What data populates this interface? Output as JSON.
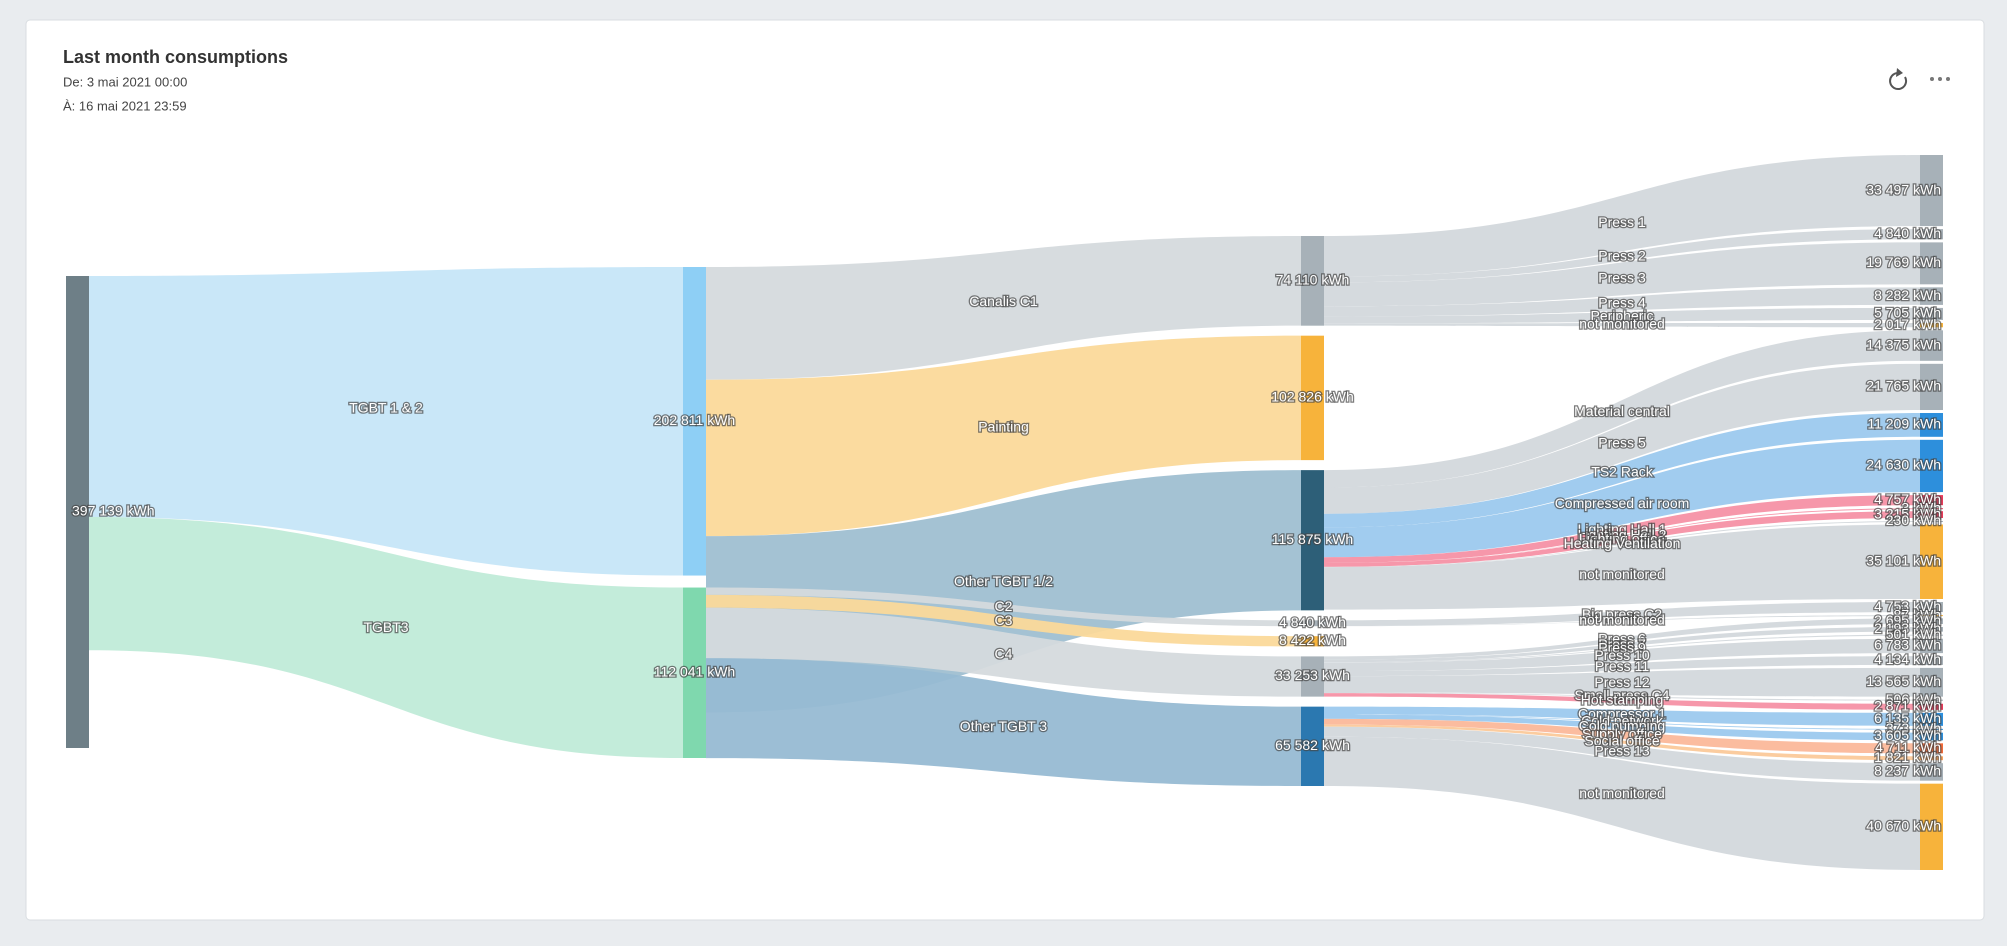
{
  "header": {
    "title": "Last month consumptions",
    "from": "De: 3 mai 2021 00:00",
    "to": "À: 16 mai 2021 23:59"
  },
  "chart_data": {
    "type": "sankey",
    "nodes": [
      {
        "value": 397139,
        "value_label": "397 139 kWh",
        "color": "#6e7f87"
      },
      {
        "value": 202811,
        "value_label": "202 811 kWh",
        "color": "#8ecff5"
      },
      {
        "value": 112041,
        "value_label": "112 041 kWh",
        "color": "#7fd8ae"
      },
      {
        "value": 74110,
        "value_label": "74 110 kWh",
        "color": "#a7b1b8"
      },
      {
        "value": 102826,
        "value_label": "102 826 kWh",
        "color": "#f7b33b"
      },
      {
        "value": 115875,
        "value_label": "115 875 kWh",
        "color": "#2d5f78"
      },
      {
        "value": 4840,
        "value_label": "4 840 kWh",
        "color": "#a7b1b8"
      },
      {
        "value": 8422,
        "value_label": "8 422 kWh",
        "color": "#f7b33b"
      },
      {
        "value": 33253,
        "value_label": "33 253 kWh",
        "color": "#a7b1b8"
      },
      {
        "value": 65582,
        "value_label": "65 582 kWh",
        "color": "#2b78b0"
      },
      {
        "value": 33497,
        "value_label": "33 497 kWh",
        "color": "#a7b1b8"
      },
      {
        "value": 4840,
        "value_label": "4 840 kWh",
        "color": "#a7b1b8"
      },
      {
        "value": 19769,
        "value_label": "19 769 kWh",
        "color": "#a7b1b8"
      },
      {
        "value": 8282,
        "value_label": "8 282 kWh",
        "color": "#a7b1b8"
      },
      {
        "value": 5705,
        "value_label": "5 705 kWh",
        "color": "#a7b1b8"
      },
      {
        "value": 2017,
        "value_label": "2 017 kWh",
        "color": "#f7b33b"
      },
      {
        "value": 14375,
        "value_label": "14 375 kWh",
        "color": "#a7b1b8"
      },
      {
        "value": 21765,
        "value_label": "21 765 kWh",
        "color": "#a7b1b8"
      },
      {
        "value": 11209,
        "value_label": "11 209 kWh",
        "color": "#2d8fdc"
      },
      {
        "value": 24630,
        "value_label": "24 630 kWh",
        "color": "#2d8fdc"
      },
      {
        "value": 4757,
        "value_label": "4 757 kWh",
        "color": "#e83b5a"
      },
      {
        "value": 3,
        "value_label": "3 kWh",
        "color": "#e83b5a"
      },
      {
        "value": 3215,
        "value_label": "3 215 kWh",
        "color": "#e83b5a"
      },
      {
        "value": 230,
        "value_label": "230 kWh",
        "color": "#a7b1b8"
      },
      {
        "value": 35101,
        "value_label": "35 101 kWh",
        "color": "#f7b33b"
      },
      {
        "value": 4753,
        "value_label": "4 753 kWh",
        "color": "#a7b1b8"
      },
      {
        "value": 87,
        "value_label": "87 kWh",
        "color": "#f7b33b"
      },
      {
        "value": 2695,
        "value_label": "2 695 kWh",
        "color": "#a7b1b8"
      },
      {
        "value": 2193,
        "value_label": "2 193 kWh",
        "color": "#a7b1b8"
      },
      {
        "value": 501,
        "value_label": "501 kWh",
        "color": "#a7b1b8"
      },
      {
        "value": 6783,
        "value_label": "6 783 kWh",
        "color": "#a7b1b8"
      },
      {
        "value": 4134,
        "value_label": "4 134 kWh",
        "color": "#a7b1b8"
      },
      {
        "value": 13565,
        "value_label": "13 565 kWh",
        "color": "#a7b1b8"
      },
      {
        "value": 506,
        "value_label": "506 kWh",
        "color": "#a7b1b8"
      },
      {
        "value": 2871,
        "value_label": "2 871 kWh",
        "color": "#e83b5a"
      },
      {
        "value": 6135,
        "value_label": "6 135 kWh",
        "color": "#2d8fdc"
      },
      {
        "value": 373,
        "value_label": "373 kWh",
        "color": "#2d8fdc"
      },
      {
        "value": 3605,
        "value_label": "3 605 kWh",
        "color": "#2d8fdc"
      },
      {
        "value": 4711,
        "value_label": "4 711 kWh",
        "color": "#f26b3a"
      },
      {
        "value": 1821,
        "value_label": "1 821 kWh",
        "color": "#f7a15a"
      },
      {
        "value": 8237,
        "value_label": "8 237 kWh",
        "color": "#a7b1b8"
      },
      {
        "value": 40670,
        "value_label": "40 670 kWh",
        "color": "#f7b33b"
      }
    ],
    "links": [
      {
        "source": 0,
        "target": 1,
        "name": "TGBT 1 & 2",
        "color": "#c6e6f8"
      },
      {
        "source": 0,
        "target": 2,
        "name": "TGBT3",
        "color": "#c0ebd8"
      },
      {
        "source": 1,
        "target": 3,
        "name": "Canalis C1",
        "color": "#d5dadd"
      },
      {
        "source": 1,
        "target": 4,
        "name": "Painting",
        "color": "#fbd99a"
      },
      {
        "source": 1,
        "target": 5,
        "name": "Other TGBT 1/2",
        "color": "#9fbfd1"
      },
      {
        "source": 2,
        "target": 6,
        "name": "C2",
        "color": "#d5dadd"
      },
      {
        "source": 2,
        "target": 7,
        "name": "C3",
        "color": "#fbd99a"
      },
      {
        "source": 2,
        "target": 8,
        "name": "C4",
        "color": "#d5dadd"
      },
      {
        "source": 2,
        "target": 9,
        "name": "Other TGBT 3",
        "color": "#97bbd3"
      },
      {
        "source": 3,
        "target": 10,
        "name": "Press 1",
        "color": "#d3d8dc"
      },
      {
        "source": 3,
        "target": 11,
        "name": "Press 2",
        "color": "#d3d8dc"
      },
      {
        "source": 3,
        "target": 12,
        "name": "Press 3",
        "color": "#d3d8dc"
      },
      {
        "source": 3,
        "target": 13,
        "name": "Press 4",
        "color": "#d3d8dc"
      },
      {
        "source": 3,
        "target": 14,
        "name": "Peripheric",
        "color": "#d3d8dc"
      },
      {
        "source": 3,
        "target": 15,
        "name": "not monitored",
        "color": "#d3d8dc"
      },
      {
        "source": 5,
        "target": 16,
        "name": "Material central",
        "color": "#d3d8dc"
      },
      {
        "source": 5,
        "target": 17,
        "name": "Press 5",
        "color": "#d3d8dc"
      },
      {
        "source": 5,
        "target": 18,
        "name": "TS2 Rack",
        "color": "#9cc9ee"
      },
      {
        "source": 5,
        "target": 19,
        "name": "Compressed air room",
        "color": "#9cc9ee"
      },
      {
        "source": 5,
        "target": 20,
        "name": "Lighting Hall 1",
        "color": "#f591a5"
      },
      {
        "source": 5,
        "target": 21,
        "name": "Lighting Hall 2",
        "color": "#f591a5"
      },
      {
        "source": 5,
        "target": 22,
        "name": "Lighting office",
        "color": "#f591a5"
      },
      {
        "source": 5,
        "target": 23,
        "name": "Heating Ventilation",
        "color": "#d3d8dc"
      },
      {
        "source": 5,
        "target": 24,
        "name": "not monitored",
        "color": "#d3d8dc"
      },
      {
        "source": 6,
        "target": 25,
        "name": "Big press C2",
        "color": "#d3d8dc"
      },
      {
        "source": 6,
        "target": 26,
        "name": "not monitored",
        "color": "#d3d8dc"
      },
      {
        "source": 8,
        "target": 27,
        "name": "Press 6",
        "color": "#d3d8dc"
      },
      {
        "source": 8,
        "target": 28,
        "name": "Press 7",
        "color": "#d3d8dc"
      },
      {
        "source": 8,
        "target": 29,
        "name": "Press 9",
        "color": "#d3d8dc"
      },
      {
        "source": 8,
        "target": 30,
        "name": "Press 10",
        "color": "#d3d8dc"
      },
      {
        "source": 8,
        "target": 31,
        "name": "Press 11",
        "color": "#d3d8dc"
      },
      {
        "source": 8,
        "target": 32,
        "name": "Press 12",
        "color": "#d3d8dc"
      },
      {
        "source": 8,
        "target": 33,
        "name": "Small press C4",
        "color": "#d3d8dc"
      },
      {
        "source": 8,
        "target": 34,
        "name": "Hot stamping",
        "color": "#f591a5"
      },
      {
        "source": 9,
        "target": 35,
        "name": "Compressor 1",
        "color": "#9cc9ee"
      },
      {
        "source": 9,
        "target": 36,
        "name": "Cold network",
        "color": "#9cc9ee"
      },
      {
        "source": 9,
        "target": 37,
        "name": "Cold pumping",
        "color": "#9cc9ee"
      },
      {
        "source": 9,
        "target": 38,
        "name": "Supply office",
        "color": "#fbb89a"
      },
      {
        "source": 9,
        "target": 39,
        "name": "Social office",
        "color": "#fbc99a"
      },
      {
        "source": 9,
        "target": 40,
        "name": "Press 13",
        "color": "#d3d8dc"
      },
      {
        "source": 9,
        "target": 41,
        "name": "not monitored",
        "color": "#d3d8dc"
      }
    ]
  }
}
